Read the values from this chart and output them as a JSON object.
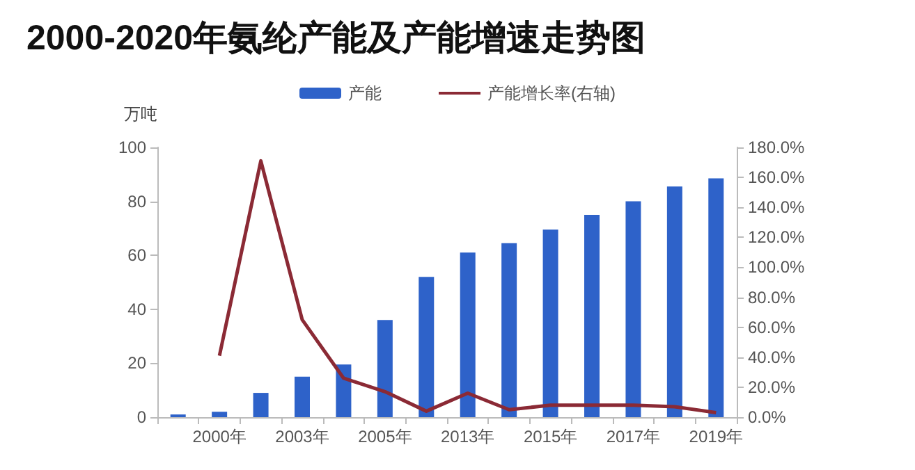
{
  "chart_data": {
    "type": "bar",
    "title": "2000-2020年氨纶产能及产能增速走势图",
    "ylabel": "万吨",
    "categories": [
      null,
      "2000年",
      null,
      "2003年",
      null,
      "2005年",
      null,
      "2013年",
      null,
      "2015年",
      null,
      "2017年",
      null,
      "2019年"
    ],
    "series": [
      {
        "name": "产能",
        "color": "#2e62c9",
        "values": [
          1,
          2,
          9,
          15,
          19.5,
          36,
          52,
          61,
          64.5,
          69.5,
          75,
          80,
          85.5,
          88.5
        ]
      },
      {
        "name": "产能增长率(右轴)",
        "type": "line",
        "axis": "y2",
        "color": "#8b2a35",
        "marker": "none",
        "values": [
          null,
          41,
          171,
          65,
          26,
          17,
          4,
          16,
          5,
          8,
          8,
          8,
          7,
          3
        ]
      }
    ],
    "ylim": [
      0,
      100
    ],
    "yticks": [
      0,
      20,
      40,
      60,
      80,
      100
    ],
    "y2lim": [
      0,
      180
    ],
    "y2ticks": [
      {
        "value": 0,
        "label": "0.0%"
      },
      {
        "value": 20,
        "label": "20.0%"
      },
      {
        "value": 40,
        "label": "40.0%"
      },
      {
        "value": 60,
        "label": "60.0%"
      },
      {
        "value": 80,
        "label": "80.0%"
      },
      {
        "value": 100,
        "label": "100.0%"
      },
      {
        "value": 120,
        "label": "120.0%"
      },
      {
        "value": 140,
        "label": "140.0%"
      },
      {
        "value": 160,
        "label": "160.0%"
      },
      {
        "value": 180,
        "label": "180.0%"
      }
    ],
    "grid": false,
    "legend": "top"
  }
}
